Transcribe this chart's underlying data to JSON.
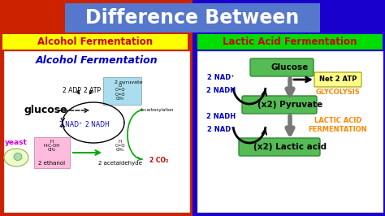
{
  "title": "Difference Between",
  "title_bg": "#5577cc",
  "title_color": "white",
  "left_label": "Alcohol Fermentation",
  "left_label_bg": "#ffff00",
  "left_label_color": "#cc0000",
  "right_label": "Lactic Acid Fermentation",
  "right_label_bg": "#00dd00",
  "right_label_color": "#cc0000",
  "bg_color": "#cc2200",
  "right_bg_color": "#2200cc",
  "panel_bg": "#ffffff",
  "left_panel_title": "Alcohol Fermentation",
  "left_panel_title_color": "#0000cc",
  "right_box_color": "#55bb55",
  "right_box_edge": "#338833",
  "atp_box_color": "#ffff88",
  "blue_label_color": "#0000cc",
  "orange_label_color": "#ff8800",
  "gray_arrow_color": "#777777",
  "black_arrow_color": "#111111"
}
